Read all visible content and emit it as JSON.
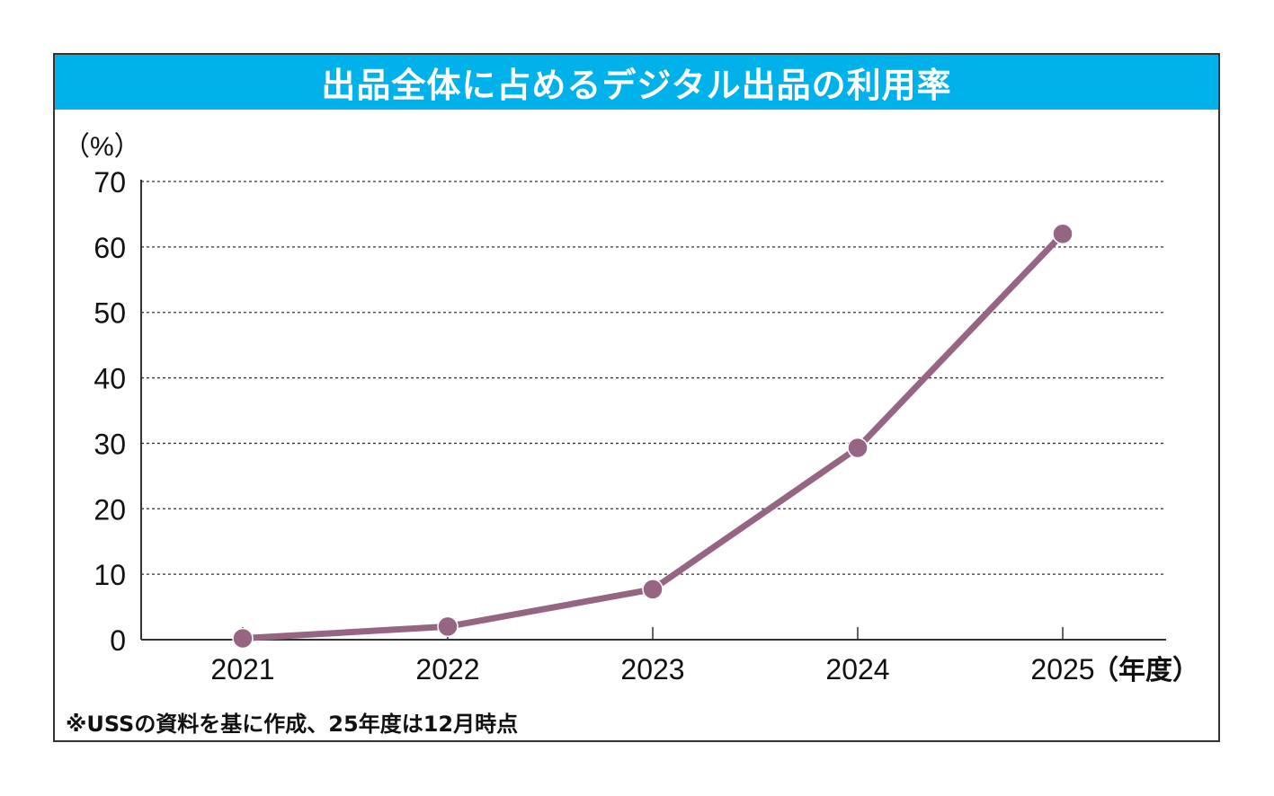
{
  "chart_data": {
    "type": "line",
    "title": "出品全体に占めるデジタル出品の利用率",
    "ylabel": "（%）",
    "xlabel_suffix": "（年度）",
    "categories": [
      "2021",
      "2022",
      "2023",
      "2024",
      "2025"
    ],
    "series": [
      {
        "name": "デジタル出品の利用率",
        "values": [
          0.2,
          2.0,
          7.7,
          29.3,
          62.0
        ]
      }
    ],
    "ylim": [
      0,
      70
    ],
    "yticks": [
      0,
      10,
      20,
      30,
      40,
      50,
      60,
      70
    ],
    "grid": true,
    "gridStyle": "dotted",
    "colors": {
      "line": "#976584",
      "marker": "#976584",
      "title_bg": "#00b1ea",
      "title_text": "#ffffff"
    },
    "footnote": "※USSの資料を基に作成、25年度は12月時点"
  }
}
